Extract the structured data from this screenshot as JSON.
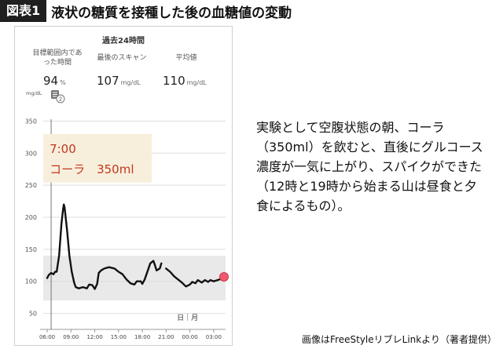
{
  "header": {
    "figure_label": "図表1",
    "title": "液状の糖質を接種した後の血糖値の変動"
  },
  "app": {
    "period": "過去24時間",
    "stats": [
      {
        "label_lines": [
          "目標範囲内であ",
          "った時間"
        ],
        "value": "94",
        "unit": "%"
      },
      {
        "label_lines": [
          "最後のスキャン"
        ],
        "value": "107",
        "unit": "mg/dL"
      },
      {
        "label_lines": [
          "平均値"
        ],
        "value": "110",
        "unit": "mg/dL"
      }
    ],
    "sensor_badge": "2"
  },
  "chart_data": {
    "type": "line",
    "y_unit_label": "mg/dL",
    "ylim": [
      25,
      375
    ],
    "yticks": [
      50,
      100,
      150,
      200,
      250,
      300,
      350
    ],
    "xlim": [
      5.5,
      28.5
    ],
    "x_tick_hours": [
      6,
      9,
      12,
      15,
      18,
      21,
      24,
      27
    ],
    "x_tick_labels": [
      "06:00",
      "09:00",
      "12:00",
      "15:00",
      "18:00",
      "21:00",
      "00:00",
      "03:00"
    ],
    "target_range": [
      70,
      140
    ],
    "date_label": "日｜月",
    "event_hour": 6.5,
    "callout": {
      "time": "7:00",
      "text": "コーラ　350ml"
    },
    "colors": {
      "line": "#111111",
      "band": "#e9e9e9",
      "callout_bg": "#f7efdc",
      "callout_text": "#c4361d",
      "dot": "#ef5a6d"
    },
    "series": [
      {
        "segments": [
          [
            [
              6.0,
              105
            ],
            [
              6.2,
              110
            ],
            [
              6.5,
              113
            ],
            [
              6.8,
              111
            ],
            [
              7.0,
              115
            ],
            [
              7.2,
              115
            ],
            [
              7.5,
              140
            ],
            [
              7.8,
              190
            ],
            [
              8.0,
              212
            ],
            [
              8.1,
              220
            ],
            [
              8.2,
              215
            ],
            [
              8.5,
              180
            ],
            [
              8.8,
              140
            ],
            [
              9.1,
              115
            ],
            [
              9.4,
              98
            ],
            [
              9.6,
              91
            ],
            [
              10.0,
              89
            ],
            [
              10.5,
              91
            ],
            [
              11.0,
              89
            ],
            [
              11.3,
              95
            ],
            [
              11.7,
              94
            ],
            [
              12.0,
              88
            ],
            [
              12.3,
              96
            ],
            [
              12.5,
              113
            ],
            [
              12.8,
              117
            ],
            [
              13.2,
              120
            ],
            [
              13.8,
              122
            ],
            [
              14.5,
              120
            ],
            [
              15.0,
              115
            ],
            [
              15.5,
              111
            ],
            [
              16.0,
              103
            ],
            [
              16.5,
              97
            ],
            [
              17.0,
              95
            ],
            [
              17.3,
              100
            ],
            [
              17.8,
              100
            ],
            [
              18.0,
              96
            ],
            [
              18.3,
              103
            ],
            [
              18.7,
              117
            ],
            [
              19.0,
              128
            ],
            [
              19.4,
              132
            ],
            [
              19.6,
              125
            ],
            [
              19.8,
              117
            ],
            [
              20.2,
              120
            ],
            [
              20.4,
              128
            ]
          ],
          [
            [
              21.0,
              120
            ],
            [
              21.5,
              115
            ],
            [
              22.0,
              108
            ],
            [
              22.5,
              103
            ],
            [
              23.0,
              98
            ],
            [
              23.5,
              92
            ],
            [
              24.0,
              95
            ],
            [
              24.3,
              99
            ],
            [
              24.7,
              97
            ],
            [
              25.0,
              102
            ],
            [
              25.5,
              98
            ],
            [
              25.9,
              102
            ],
            [
              26.3,
              99
            ],
            [
              26.6,
              102
            ],
            [
              27.0,
              100
            ],
            [
              27.5,
              102
            ],
            [
              28.0,
              104
            ],
            [
              28.3,
              106
            ]
          ]
        ],
        "last_value": 107
      }
    ]
  },
  "annotation_text": "実験として空腹状態の朝、コーラ（350ml）を飲むと、直後にグルコース濃度が一気に上がり、スパイクができた（12時と19時から始まる山は昼食と夕食によるもの）。",
  "credit": "画像はFreeStyleリブレLinkより（著者提供）"
}
